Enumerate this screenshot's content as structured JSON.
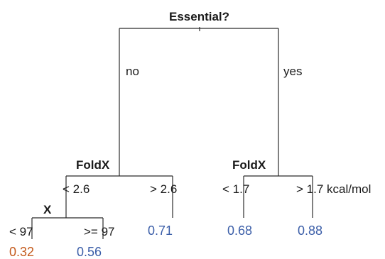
{
  "colors": {
    "line": "#2b2b2b",
    "text": "#1a1a1a",
    "high_value": "#3b5ea8",
    "low_value": "#c45a1c"
  },
  "root": {
    "label": "Essential?",
    "branches": {
      "no": "no",
      "yes": "yes"
    }
  },
  "foldx_left": {
    "label": "FoldX",
    "branch_low": "< 2.6",
    "branch_high": "> 2.6"
  },
  "x_node": {
    "label": "X",
    "branch_low": "< 97",
    "branch_high": ">= 97"
  },
  "foldx_right": {
    "label": "FoldX",
    "branch_low": "< 1.7",
    "branch_high": "> 1.7 kcal/mol"
  },
  "leaves": {
    "no_low_x_low": {
      "value": "0.32",
      "color": "#c45a1c"
    },
    "no_low_x_high": {
      "value": "0.56",
      "color": "#3b5ea8"
    },
    "no_high": {
      "value": "0.71",
      "color": "#3b5ea8"
    },
    "yes_low": {
      "value": "0.68",
      "color": "#3b5ea8"
    },
    "yes_high": {
      "value": "0.88",
      "color": "#3b5ea8"
    }
  }
}
